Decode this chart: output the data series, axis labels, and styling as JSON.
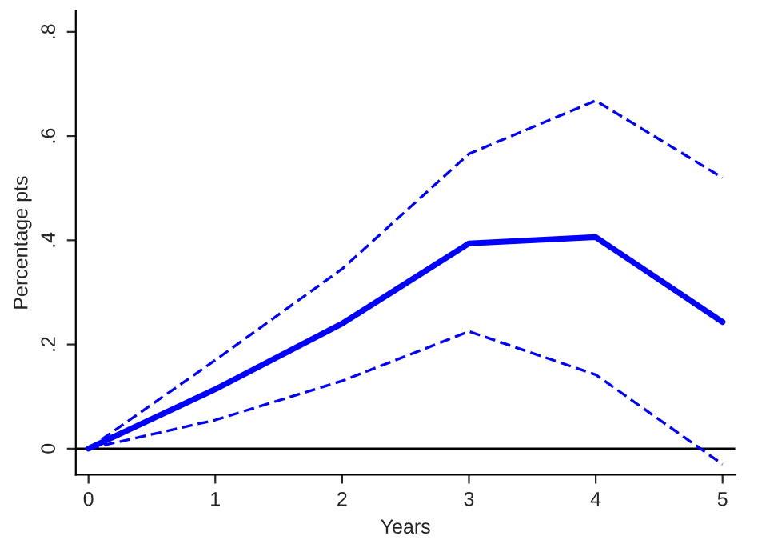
{
  "chart_data": {
    "type": "line",
    "xlabel": "Years",
    "ylabel": "Percentage pts",
    "x": [
      0,
      1,
      2,
      3,
      4,
      5
    ],
    "series": [
      {
        "color": "#0000ff",
        "line_style": "dashed",
        "values": [
          0,
          0.17,
          0.345,
          0.566,
          0.668,
          0.52
        ]
      },
      {
        "color": "#0000ff",
        "line_style": "solid",
        "values": [
          0,
          0.114,
          0.24,
          0.394,
          0.406,
          0.243
        ]
      },
      {
        "color": "#0000ff",
        "line_style": "dashed",
        "values": [
          0,
          0.055,
          0.13,
          0.225,
          0.142,
          -0.03
        ]
      }
    ],
    "xlim": [
      -0.1,
      5.1
    ],
    "ylim": [
      -0.05,
      0.84
    ],
    "xticks": [
      0,
      1,
      2,
      3,
      4,
      5
    ],
    "yticks": [
      0,
      {
        "value": 0.2,
        "label": ".2"
      },
      {
        "value": 0.4,
        "label": ".4"
      },
      {
        "value": 0.6,
        "label": ".6"
      },
      {
        "value": 0.8,
        "label": ".8"
      }
    ],
    "ref_lines": [
      {
        "axis": "y",
        "value": 0,
        "color": "#000000",
        "line_style": "solid"
      }
    ],
    "grid": false,
    "legend": false,
    "marker": "none"
  }
}
